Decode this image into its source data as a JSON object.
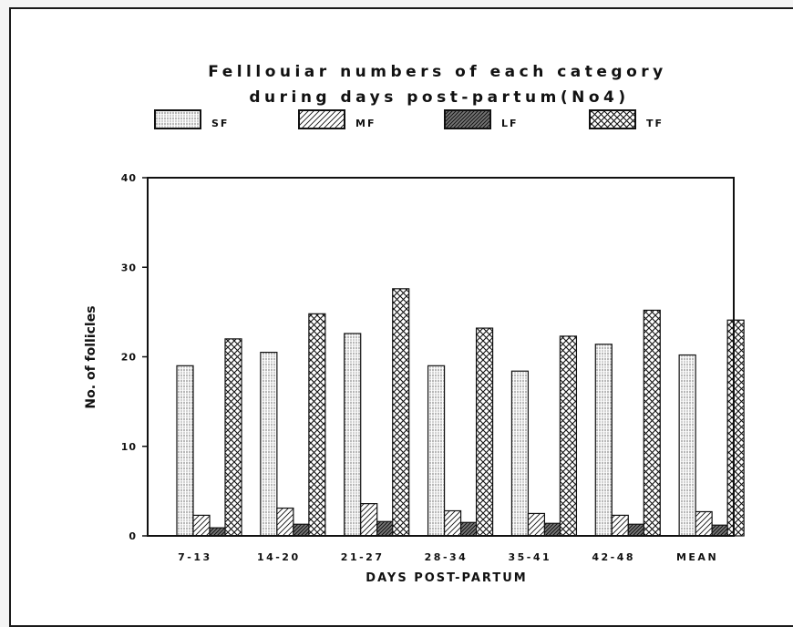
{
  "chart_data": {
    "type": "bar",
    "title_lines": [
      "Felllouiar numbers of each category",
      "during days post-partum(No4)"
    ],
    "xlabel": "DAYS POST-PARTUM",
    "ylabel": "No. of follicles",
    "ylim": [
      0,
      40
    ],
    "yticks": [
      "0",
      "10",
      "20",
      "30",
      "40"
    ],
    "categories": [
      "7-13",
      "14-20",
      "21-27",
      "28-34",
      "35-41",
      "42-48",
      "MEAN"
    ],
    "series": [
      {
        "name": "SF",
        "pattern": "sf",
        "values": [
          19.0,
          20.5,
          22.6,
          19.0,
          18.4,
          21.4,
          20.2
        ]
      },
      {
        "name": "MF",
        "pattern": "mf",
        "values": [
          2.3,
          3.1,
          3.6,
          2.8,
          2.5,
          2.3,
          2.7
        ]
      },
      {
        "name": "LF",
        "pattern": "lf",
        "values": [
          0.9,
          1.3,
          1.6,
          1.5,
          1.4,
          1.3,
          1.2
        ]
      },
      {
        "name": "TF",
        "pattern": "tf",
        "values": [
          22.0,
          24.8,
          27.6,
          23.2,
          22.3,
          25.2,
          24.1
        ]
      }
    ],
    "grid": false,
    "legend_position": "top"
  }
}
